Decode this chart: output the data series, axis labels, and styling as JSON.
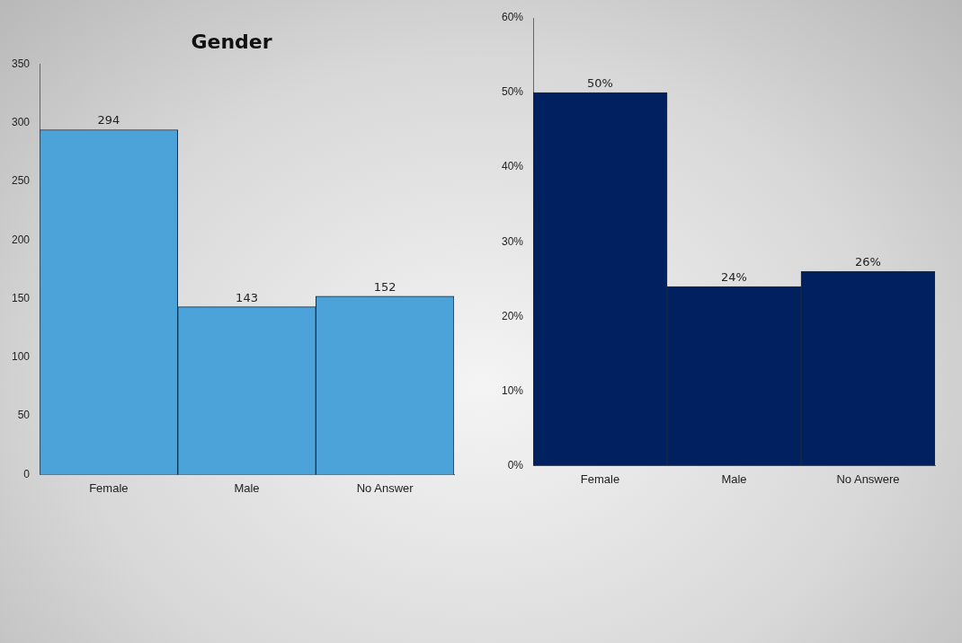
{
  "chart_data": [
    {
      "type": "bar",
      "title": "Gender",
      "categories": [
        "Female",
        "Male",
        "No Answer"
      ],
      "values": [
        294,
        143,
        152
      ],
      "color": "#4ba3d9",
      "ylim": [
        0,
        350
      ],
      "yticks": [
        0,
        50,
        100,
        150,
        200,
        250,
        300,
        350
      ],
      "data_labels": true
    },
    {
      "type": "bar",
      "categories": [
        "Female",
        "Male",
        "No Answere"
      ],
      "values": [
        50,
        24,
        26
      ],
      "color": "#002060",
      "ylim": [
        0,
        60
      ],
      "yticks": [
        {
          "value": 0,
          "label": "0%"
        },
        {
          "value": 10,
          "label": "10%"
        },
        {
          "value": 20,
          "label": "20%"
        },
        {
          "value": 30,
          "label": "30%"
        },
        {
          "value": 40,
          "label": "40%"
        },
        {
          "value": 50,
          "label": "50%"
        },
        {
          "value": 60,
          "label": "60%"
        }
      ],
      "value_labels": [
        "50%",
        "24%",
        "26%"
      ]
    }
  ]
}
